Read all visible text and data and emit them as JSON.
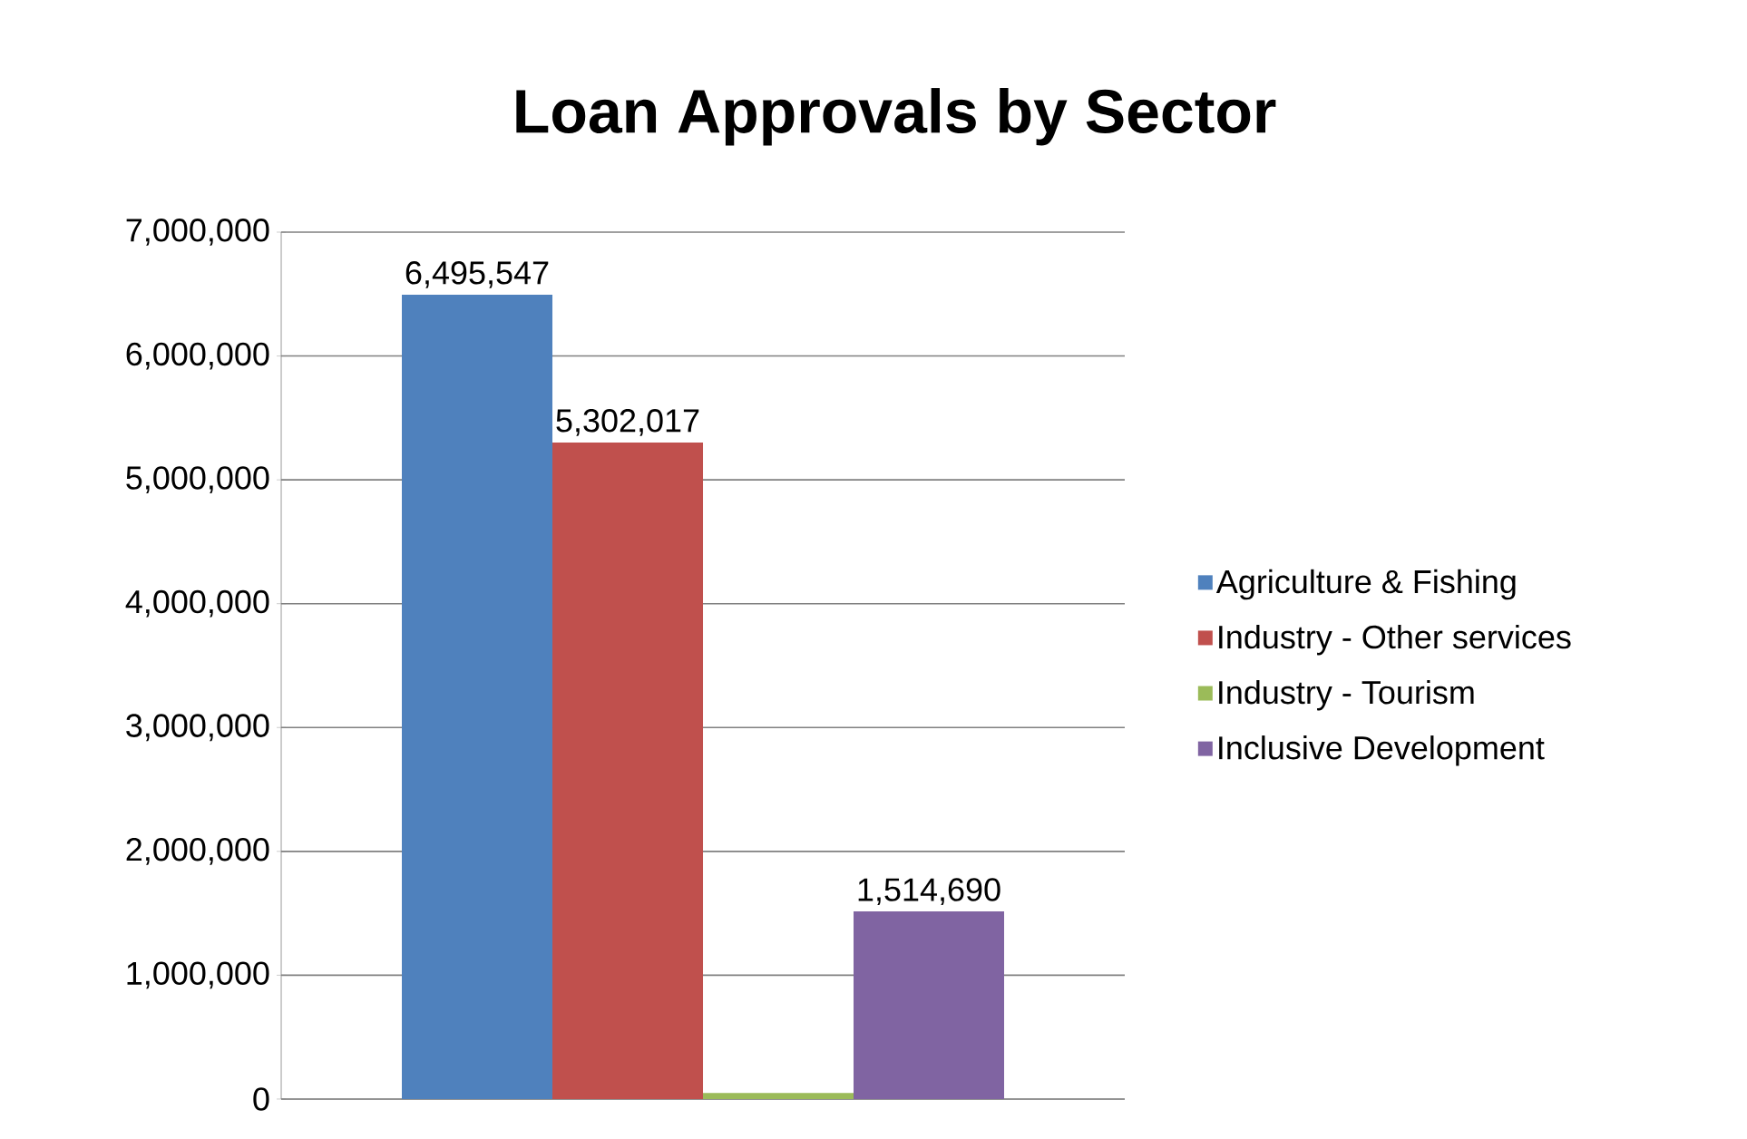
{
  "chart_data": {
    "type": "bar",
    "title": "Loan Approvals by Sector",
    "categories": [
      null
    ],
    "series": [
      {
        "name": "Agriculture & Fishing",
        "color": "#4f81bd",
        "values": [
          6495547
        ],
        "value_labels": [
          "6,495,547"
        ]
      },
      {
        "name": "Industry - Other services",
        "color": "#c0504d",
        "values": [
          5302017
        ],
        "value_labels": [
          "5,302,017"
        ]
      },
      {
        "name": "Industry - Tourism",
        "color": "#9bbb59",
        "values": [
          50000
        ],
        "value_labels": [
          null
        ]
      },
      {
        "name": "Inclusive Development",
        "color": "#8064a2",
        "values": [
          1514690
        ],
        "value_labels": [
          "1,514,690"
        ]
      }
    ],
    "ylim": [
      0,
      7000000
    ],
    "yticks": [
      {
        "value": 0,
        "label": "0"
      },
      {
        "value": 1000000,
        "label": "1,000,000"
      },
      {
        "value": 2000000,
        "label": "2,000,000"
      },
      {
        "value": 3000000,
        "label": "3,000,000"
      },
      {
        "value": 4000000,
        "label": "4,000,000"
      },
      {
        "value": 5000000,
        "label": "5,000,000"
      },
      {
        "value": 6000000,
        "label": "6,000,000"
      },
      {
        "value": 7000000,
        "label": "7,000,000"
      }
    ],
    "grid": "y",
    "legend": "right"
  }
}
